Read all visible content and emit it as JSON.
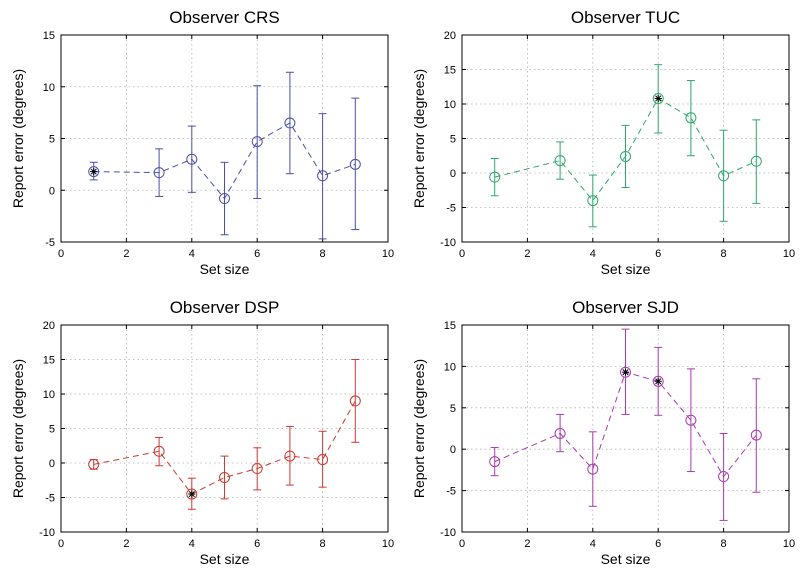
{
  "chart_data": [
    {
      "type": "scatter",
      "title": "Observer CRS",
      "xlabel": "Set size",
      "ylabel": "Report error (degrees)",
      "xlim": [
        0,
        10
      ],
      "ylim": [
        -5,
        15
      ],
      "xticks": [
        "0",
        "2",
        "4",
        "6",
        "8",
        "10"
      ],
      "yticks": [
        "-5",
        "0",
        "5",
        "10",
        "15"
      ],
      "grid": true,
      "color": "#4a50a8",
      "line_style": "dashed",
      "x": [
        1,
        3,
        4,
        5,
        6,
        7,
        8,
        9
      ],
      "y": [
        1.8,
        1.7,
        3.0,
        -0.8,
        4.7,
        6.5,
        1.4,
        2.5
      ],
      "err_low": [
        1.0,
        -0.6,
        -0.2,
        -4.3,
        -0.8,
        1.6,
        -4.7,
        -3.8
      ],
      "err_high": [
        2.7,
        4.0,
        6.2,
        2.7,
        10.1,
        11.4,
        7.4,
        8.9
      ],
      "starred": [
        true,
        false,
        false,
        false,
        false,
        false,
        false,
        false
      ]
    },
    {
      "type": "scatter",
      "title": "Observer TUC",
      "xlabel": "Set size",
      "ylabel": "Report error (degrees)",
      "xlim": [
        0,
        10
      ],
      "ylim": [
        -10,
        20
      ],
      "xticks": [
        "0",
        "2",
        "4",
        "6",
        "8",
        "10"
      ],
      "yticks": [
        "-10",
        "-5",
        "0",
        "5",
        "10",
        "15",
        "20"
      ],
      "grid": true,
      "color": "#2ea86a",
      "line_style": "dashed",
      "x": [
        1,
        3,
        4,
        5,
        6,
        7,
        8,
        9
      ],
      "y": [
        -0.6,
        1.8,
        -4.0,
        2.4,
        10.8,
        8.0,
        -0.4,
        1.7
      ],
      "err_low": [
        -3.3,
        -0.9,
        -7.8,
        -2.1,
        5.8,
        2.5,
        -7.0,
        -4.4
      ],
      "err_high": [
        2.1,
        4.5,
        -0.3,
        6.9,
        15.7,
        13.4,
        6.2,
        7.7
      ],
      "starred": [
        false,
        false,
        false,
        false,
        true,
        false,
        false,
        false
      ]
    },
    {
      "type": "scatter",
      "title": "Observer DSP",
      "xlabel": "Set size",
      "ylabel": "Report error (degrees)",
      "xlim": [
        0,
        10
      ],
      "ylim": [
        -10,
        20
      ],
      "xticks": [
        "0",
        "2",
        "4",
        "6",
        "8",
        "10"
      ],
      "yticks": [
        "-10",
        "-5",
        "0",
        "5",
        "10",
        "15",
        "20"
      ],
      "grid": true,
      "color": "#cc3a33",
      "line_style": "dashed",
      "x": [
        1,
        3,
        4,
        5,
        6,
        7,
        8,
        9
      ],
      "y": [
        -0.2,
        1.7,
        -4.5,
        -2.1,
        -0.8,
        1.0,
        0.5,
        9.0
      ],
      "err_low": [
        -0.9,
        -0.4,
        -6.7,
        -5.2,
        -3.9,
        -3.2,
        -3.5,
        3.0
      ],
      "err_high": [
        0.5,
        3.7,
        -2.2,
        1.0,
        2.2,
        5.3,
        4.6,
        15.0
      ],
      "starred": [
        false,
        false,
        true,
        false,
        false,
        false,
        false,
        false
      ]
    },
    {
      "type": "scatter",
      "title": "Observer SJD",
      "xlabel": "Set size",
      "ylabel": "Report error (degrees)",
      "xlim": [
        0,
        10
      ],
      "ylim": [
        -10,
        15
      ],
      "xticks": [
        "0",
        "2",
        "4",
        "6",
        "8",
        "10"
      ],
      "yticks": [
        "-10",
        "-5",
        "0",
        "5",
        "10",
        "15"
      ],
      "grid": true,
      "color": "#a83ab0",
      "line_style": "dashed",
      "x": [
        1,
        3,
        4,
        5,
        6,
        7,
        8,
        9
      ],
      "y": [
        -1.5,
        1.9,
        -2.4,
        9.3,
        8.2,
        3.5,
        -3.3,
        1.7
      ],
      "err_low": [
        -3.2,
        -0.3,
        -6.9,
        4.2,
        4.1,
        -2.7,
        -8.6,
        -5.2
      ],
      "err_high": [
        0.2,
        4.2,
        2.1,
        14.5,
        12.3,
        9.7,
        1.9,
        8.5
      ],
      "starred": [
        false,
        false,
        false,
        true,
        true,
        false,
        false,
        false
      ]
    }
  ]
}
